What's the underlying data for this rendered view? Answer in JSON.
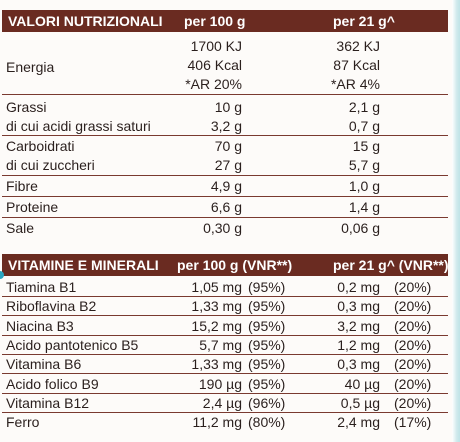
{
  "nutrition": {
    "headers": [
      "VALORI NUTRIZIONALI",
      "per 100 g",
      "per 21 g^"
    ],
    "rows": [
      {
        "label": "Energia",
        "v100": [
          "1700 KJ",
          "406 Kcal",
          "*AR 20%"
        ],
        "v21": [
          "362 KJ",
          "87 Kcal",
          "*AR 4%"
        ]
      },
      {
        "label": "Grassi",
        "v100": "10 g",
        "v21": "2,1 g"
      },
      {
        "label": "di cui acidi grassi saturi",
        "v100": "3,2 g",
        "v21": "0,7 g"
      },
      {
        "label": "Carboidrati",
        "v100": "70 g",
        "v21": "15 g"
      },
      {
        "label": "di cui zuccheri",
        "v100": "27 g",
        "v21": "5,7 g"
      },
      {
        "label": "Fibre",
        "v100": "4,9 g",
        "v21": "1,0 g"
      },
      {
        "label": "Proteine",
        "v100": "6,6 g",
        "v21": "1,4 g"
      },
      {
        "label": "Sale",
        "v100": "0,30 g",
        "v21": "0,06 g"
      }
    ]
  },
  "vitamins": {
    "headers": [
      "VITAMINE E MINERALI",
      "per 100 g (VNR**)",
      "per 21 g^ (VNR**)"
    ],
    "rows": [
      {
        "label": "Tiamina B1",
        "v100": "1,05 mg",
        "p100": "(95%)",
        "v21": "0,2 mg",
        "p21": "(20%)"
      },
      {
        "label": "Riboflavina B2",
        "v100": "1,33 mg",
        "p100": "(95%)",
        "v21": "0,3 mg",
        "p21": "(20%)"
      },
      {
        "label": "Niacina B3",
        "v100": "15,2 mg",
        "p100": "(95%)",
        "v21": "3,2 mg",
        "p21": "(20%)"
      },
      {
        "label": "Acido pantotenico B5",
        "v100": "5,7 mg",
        "p100": "(95%)",
        "v21": "1,2 mg",
        "p21": "(20%)"
      },
      {
        "label": "Vitamina B6",
        "v100": "1,33 mg",
        "p100": "(95%)",
        "v21": "0,3 mg",
        "p21": "(20%)"
      },
      {
        "label": "Acido folico B9",
        "v100": "190 µg",
        "p100": "(95%)",
        "v21": "40 µg",
        "p21": "(20%)"
      },
      {
        "label": "Vitamina B12",
        "v100": "2,4 µg",
        "p100": "(96%)",
        "v21": "0,5 µg",
        "p21": "(20%)"
      },
      {
        "label": "Ferro",
        "v100": "11,2 mg",
        "p100": "(80%)",
        "v21": "2,4 mg",
        "p21": "(17%)"
      }
    ]
  },
  "colors": {
    "header_bg": "#6a2b21",
    "rule": "#7a3a30",
    "accent": "#2aa6c2"
  }
}
